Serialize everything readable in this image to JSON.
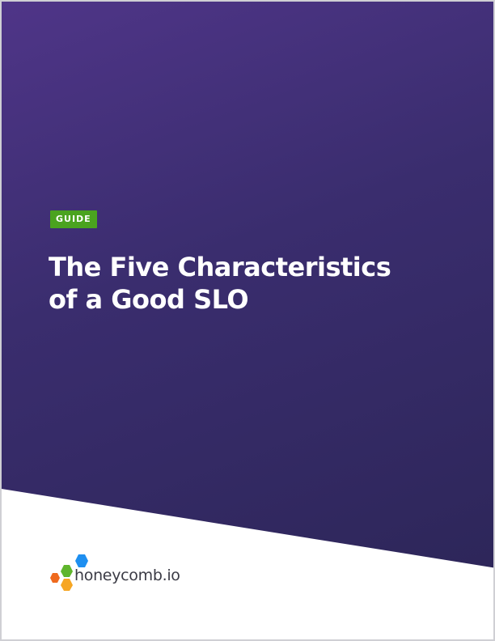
{
  "cover": {
    "badge": "GUIDE",
    "title_line1": "The Five Characteristics",
    "title_line2": "of a Good SLO",
    "brand": "honeycomb.io"
  },
  "colors": {
    "background_start": "#4f3588",
    "background_end": "#2b2556",
    "badge": "#4aa31f",
    "hex_blue": "#1e8ff0",
    "hex_green": "#5fb52c",
    "hex_orange": "#ef6a1e",
    "hex_yellow": "#f6a623"
  }
}
